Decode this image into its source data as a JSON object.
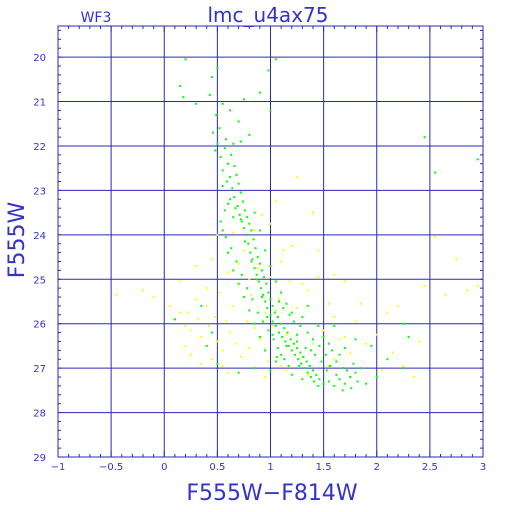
{
  "chart_data": {
    "type": "scatter",
    "title": "lmc_u4ax75",
    "panel_label": "WF3",
    "xlabel": "F555W−F814W",
    "ylabel": "F555W",
    "xlim": [
      -1,
      3
    ],
    "ylim": [
      29,
      19.3
    ],
    "y_inverted": true,
    "grid": true,
    "x_ticks": [
      -1,
      -0.5,
      0,
      0.5,
      1,
      1.5,
      2,
      2.5,
      3
    ],
    "x_tick_labels": [
      "−1",
      "−0.5",
      "0",
      "0.5",
      "1",
      "1.5",
      "2",
      "2.5",
      "3"
    ],
    "y_ticks": [
      20,
      21,
      22,
      23,
      24,
      25,
      26,
      27,
      28,
      29
    ],
    "y_tick_labels": [
      "20",
      "21",
      "22",
      "23",
      "24",
      "25",
      "26",
      "27",
      "28",
      "29"
    ],
    "series": [
      {
        "color": "#ffff00",
        "points": [
          [
            -0.45,
            25.35
          ],
          [
            -0.2,
            25.25
          ],
          [
            -0.1,
            25.4
          ],
          [
            0.05,
            25.6
          ],
          [
            0.1,
            25.9
          ],
          [
            0.15,
            25.05
          ],
          [
            0.2,
            26.05
          ],
          [
            0.22,
            25.75
          ],
          [
            0.25,
            26.15
          ],
          [
            0.3,
            25.45
          ],
          [
            0.32,
            25.9
          ],
          [
            0.35,
            26.3
          ],
          [
            0.4,
            25.6
          ],
          [
            0.42,
            26.05
          ],
          [
            0.45,
            24.55
          ],
          [
            0.48,
            25.85
          ],
          [
            0.5,
            26.4
          ],
          [
            0.52,
            25.3
          ],
          [
            0.55,
            26.6
          ],
          [
            0.58,
            25.95
          ],
          [
            0.6,
            24.85
          ],
          [
            0.62,
            26.2
          ],
          [
            0.65,
            25.6
          ],
          [
            0.68,
            26.45
          ],
          [
            0.7,
            25.1
          ],
          [
            0.72,
            26.75
          ],
          [
            0.75,
            24.35
          ],
          [
            0.78,
            25.95
          ],
          [
            0.8,
            26.55
          ],
          [
            0.82,
            25.35
          ],
          [
            0.85,
            26.1
          ],
          [
            0.88,
            24.75
          ],
          [
            0.9,
            26.35
          ],
          [
            0.92,
            23.55
          ],
          [
            0.95,
            25.75
          ],
          [
            0.98,
            26.85
          ],
          [
            1.0,
            24.95
          ],
          [
            1.02,
            26.05
          ],
          [
            1.05,
            23.25
          ],
          [
            1.08,
            25.45
          ],
          [
            1.1,
            26.95
          ],
          [
            1.12,
            24.35
          ],
          [
            1.15,
            26.25
          ],
          [
            1.18,
            25.05
          ],
          [
            1.2,
            24.25
          ],
          [
            1.25,
            25.65
          ],
          [
            1.3,
            26.75
          ],
          [
            1.35,
            25.25
          ],
          [
            1.4,
            26.45
          ],
          [
            1.45,
            24.95
          ],
          [
            1.5,
            26.15
          ],
          [
            1.55,
            25.55
          ],
          [
            1.6,
            25.85
          ],
          [
            1.65,
            26.35
          ],
          [
            1.7,
            25.05
          ],
          [
            1.75,
            26.65
          ],
          [
            1.8,
            25.95
          ],
          [
            1.9,
            26.45
          ],
          [
            2.0,
            26.25
          ],
          [
            2.1,
            25.75
          ],
          [
            2.25,
            26.95
          ],
          [
            2.35,
            27.2
          ],
          [
            2.45,
            25.15
          ],
          [
            2.55,
            24.05
          ],
          [
            2.65,
            25.35
          ],
          [
            2.75,
            24.55
          ],
          [
            2.85,
            25.25
          ],
          [
            2.95,
            25.15
          ],
          [
            1.25,
            22.7
          ],
          [
            1.4,
            23.5
          ],
          [
            1.6,
            24.9
          ],
          [
            0.3,
            24.7
          ],
          [
            0.6,
            27.1
          ],
          [
            0.95,
            27.2
          ],
          [
            1.05,
            25.7
          ],
          [
            1.3,
            25.1
          ],
          [
            0.85,
            23.9
          ],
          [
            0.2,
            26.5
          ],
          [
            0.45,
            26.8
          ],
          [
            1.15,
            27.05
          ],
          [
            1.55,
            26.95
          ],
          [
            2.15,
            26.65
          ],
          [
            0.5,
            24.0
          ],
          [
            0.7,
            24.65
          ],
          [
            1.2,
            26.6
          ],
          [
            1.35,
            27.15
          ],
          [
            0.35,
            26.9
          ],
          [
            1.7,
            26.3
          ],
          [
            2.4,
            26.4
          ],
          [
            0.15,
            25.75
          ],
          [
            0.8,
            25.0
          ],
          [
            1.1,
            24.6
          ],
          [
            1.45,
            24.35
          ],
          [
            0.65,
            23.95
          ],
          [
            0.55,
            26.95
          ],
          [
            1.85,
            25.55
          ],
          [
            2.05,
            27.05
          ],
          [
            0.4,
            25.2
          ],
          [
            1.0,
            23.75
          ],
          [
            0.25,
            26.7
          ],
          [
            1.6,
            26.8
          ],
          [
            2.2,
            25.6
          ]
        ]
      },
      {
        "color": "#00ff00",
        "points": [
          [
            0.2,
            20.05
          ],
          [
            0.15,
            20.65
          ],
          [
            0.18,
            20.9
          ],
          [
            0.3,
            21.05
          ],
          [
            0.45,
            20.45
          ],
          [
            0.5,
            20.25
          ],
          [
            0.55,
            21.05
          ],
          [
            1.05,
            20.05
          ],
          [
            0.98,
            20.3
          ],
          [
            0.9,
            20.8
          ],
          [
            1.0,
            21.2
          ],
          [
            0.62,
            21.2
          ],
          [
            0.7,
            21.45
          ],
          [
            0.75,
            20.95
          ],
          [
            0.8,
            21.75
          ],
          [
            0.46,
            21.7
          ],
          [
            0.43,
            20.85
          ],
          [
            0.49,
            21.3
          ],
          [
            0.52,
            21.6
          ],
          [
            0.58,
            21.85
          ],
          [
            0.65,
            21.95
          ],
          [
            0.72,
            21.9
          ],
          [
            0.48,
            22.1
          ],
          [
            0.53,
            22.25
          ],
          [
            0.57,
            22.05
          ],
          [
            0.6,
            22.4
          ],
          [
            0.63,
            22.2
          ],
          [
            0.55,
            22.55
          ],
          [
            0.62,
            22.7
          ],
          [
            0.66,
            22.45
          ],
          [
            0.59,
            22.8
          ],
          [
            0.68,
            22.65
          ],
          [
            0.64,
            22.95
          ],
          [
            0.7,
            22.85
          ],
          [
            0.72,
            23.05
          ],
          [
            0.66,
            23.15
          ],
          [
            0.74,
            23.25
          ],
          [
            0.69,
            23.35
          ],
          [
            0.76,
            23.45
          ],
          [
            0.71,
            23.55
          ],
          [
            0.78,
            23.6
          ],
          [
            0.73,
            23.7
          ],
          [
            0.8,
            23.75
          ],
          [
            0.75,
            23.85
          ],
          [
            0.82,
            23.9
          ],
          [
            0.77,
            24.0
          ],
          [
            0.84,
            24.1
          ],
          [
            0.79,
            24.2
          ],
          [
            0.86,
            24.3
          ],
          [
            0.81,
            24.4
          ],
          [
            0.88,
            24.5
          ],
          [
            0.83,
            24.55
          ],
          [
            0.9,
            24.65
          ],
          [
            0.85,
            24.75
          ],
          [
            0.92,
            24.8
          ],
          [
            0.87,
            24.9
          ],
          [
            0.94,
            24.95
          ],
          [
            0.89,
            25.05
          ],
          [
            0.96,
            25.1
          ],
          [
            0.91,
            25.2
          ],
          [
            0.98,
            25.3
          ],
          [
            0.93,
            25.35
          ],
          [
            1.0,
            25.45
          ],
          [
            0.95,
            25.5
          ],
          [
            1.02,
            25.6
          ],
          [
            0.97,
            25.65
          ],
          [
            1.04,
            25.75
          ],
          [
            1.0,
            25.8
          ],
          [
            1.07,
            25.85
          ],
          [
            1.02,
            25.95
          ],
          [
            1.1,
            26.0
          ],
          [
            1.05,
            26.05
          ],
          [
            1.13,
            26.1
          ],
          [
            1.08,
            26.2
          ],
          [
            1.16,
            26.2
          ],
          [
            1.11,
            26.3
          ],
          [
            1.19,
            26.35
          ],
          [
            1.14,
            26.4
          ],
          [
            1.22,
            26.45
          ],
          [
            1.17,
            26.5
          ],
          [
            1.25,
            26.55
          ],
          [
            1.2,
            26.6
          ],
          [
            1.28,
            26.65
          ],
          [
            1.23,
            26.7
          ],
          [
            1.31,
            26.75
          ],
          [
            1.26,
            26.8
          ],
          [
            1.34,
            26.85
          ],
          [
            1.29,
            26.9
          ],
          [
            1.37,
            26.95
          ],
          [
            1.32,
            27.0
          ],
          [
            1.4,
            27.05
          ],
          [
            1.35,
            27.1
          ],
          [
            1.43,
            27.15
          ],
          [
            1.38,
            27.2
          ],
          [
            1.46,
            27.25
          ],
          [
            1.41,
            27.3
          ],
          [
            1.5,
            27.35
          ],
          [
            1.45,
            27.4
          ],
          [
            1.55,
            27.3
          ],
          [
            1.6,
            27.4
          ],
          [
            1.65,
            27.25
          ],
          [
            1.7,
            27.35
          ],
          [
            1.75,
            27.2
          ],
          [
            1.8,
            27.1
          ],
          [
            1.85,
            27.0
          ],
          [
            1.56,
            26.95
          ],
          [
            1.62,
            26.85
          ],
          [
            1.68,
            27.0
          ],
          [
            1.52,
            26.7
          ],
          [
            1.58,
            26.6
          ],
          [
            1.46,
            26.5
          ],
          [
            1.4,
            26.35
          ],
          [
            1.35,
            26.2
          ],
          [
            1.28,
            26.05
          ],
          [
            1.22,
            25.95
          ],
          [
            1.18,
            25.8
          ],
          [
            1.12,
            25.65
          ],
          [
            1.08,
            25.5
          ],
          [
            1.3,
            25.85
          ],
          [
            1.45,
            26.05
          ],
          [
            1.5,
            26.3
          ],
          [
            1.55,
            26.45
          ],
          [
            1.25,
            26.25
          ],
          [
            1.15,
            26.5
          ],
          [
            1.1,
            26.7
          ],
          [
            1.05,
            26.85
          ],
          [
            1.0,
            27.05
          ],
          [
            1.2,
            27.15
          ],
          [
            1.3,
            27.25
          ],
          [
            0.95,
            26.6
          ],
          [
            0.9,
            26.3
          ],
          [
            0.85,
            26.0
          ],
          [
            0.8,
            25.7
          ],
          [
            0.75,
            25.4
          ],
          [
            0.7,
            25.1
          ],
          [
            0.65,
            24.8
          ],
          [
            0.6,
            24.4
          ],
          [
            0.55,
            23.9
          ],
          [
            0.6,
            23.3
          ],
          [
            0.65,
            23.6
          ],
          [
            0.85,
            23.5
          ],
          [
            0.9,
            23.9
          ],
          [
            0.95,
            24.35
          ],
          [
            1.0,
            24.7
          ],
          [
            1.05,
            25.05
          ],
          [
            1.1,
            25.3
          ],
          [
            1.15,
            25.55
          ],
          [
            1.2,
            25.75
          ],
          [
            1.35,
            25.6
          ],
          [
            1.25,
            26.4
          ],
          [
            1.33,
            26.55
          ],
          [
            1.42,
            26.7
          ],
          [
            1.48,
            26.85
          ],
          [
            1.53,
            27.05
          ],
          [
            1.62,
            27.15
          ],
          [
            1.72,
            27.05
          ],
          [
            1.78,
            26.9
          ],
          [
            1.82,
            27.3
          ],
          [
            1.65,
            26.7
          ],
          [
            1.38,
            26.6
          ],
          [
            1.27,
            26.95
          ],
          [
            1.17,
            26.95
          ],
          [
            1.13,
            26.8
          ],
          [
            1.07,
            26.55
          ],
          [
            1.03,
            26.35
          ],
          [
            0.98,
            26.15
          ],
          [
            0.93,
            25.95
          ],
          [
            0.88,
            25.75
          ],
          [
            0.83,
            25.45
          ],
          [
            0.78,
            25.2
          ],
          [
            0.73,
            24.9
          ],
          [
            0.68,
            24.6
          ],
          [
            0.63,
            24.3
          ],
          [
            0.58,
            24.05
          ],
          [
            0.53,
            23.7
          ],
          [
            0.57,
            23.45
          ],
          [
            0.62,
            23.2
          ],
          [
            0.67,
            23.4
          ],
          [
            0.72,
            23.65
          ],
          [
            0.76,
            24.15
          ],
          [
            0.82,
            24.6
          ],
          [
            0.87,
            25.0
          ],
          [
            0.92,
            25.4
          ],
          [
            0.97,
            25.85
          ],
          [
            1.02,
            26.25
          ],
          [
            1.06,
            26.75
          ],
          [
            2.25,
            26.0
          ],
          [
            2.3,
            26.3
          ],
          [
            2.45,
            21.8
          ],
          [
            2.55,
            22.6
          ],
          [
            2.95,
            22.3
          ],
          [
            0.1,
            25.9
          ],
          [
            0.4,
            26.5
          ],
          [
            0.5,
            26.9
          ],
          [
            0.7,
            27.1
          ],
          [
            0.85,
            27.0
          ],
          [
            2.0,
            27.2
          ],
          [
            2.1,
            26.8
          ],
          [
            1.95,
            26.5
          ],
          [
            0.35,
            25.6
          ],
          [
            0.45,
            26.2
          ],
          [
            1.9,
            27.35
          ],
          [
            1.76,
            27.45
          ],
          [
            1.68,
            27.5
          ],
          [
            2.25,
            27.0
          ],
          [
            1.6,
            26.05
          ],
          [
            1.7,
            26.55
          ],
          [
            1.8,
            26.35
          ],
          [
            0.55,
            22.9
          ],
          [
            0.5,
            21.95
          ]
        ]
      }
    ]
  }
}
